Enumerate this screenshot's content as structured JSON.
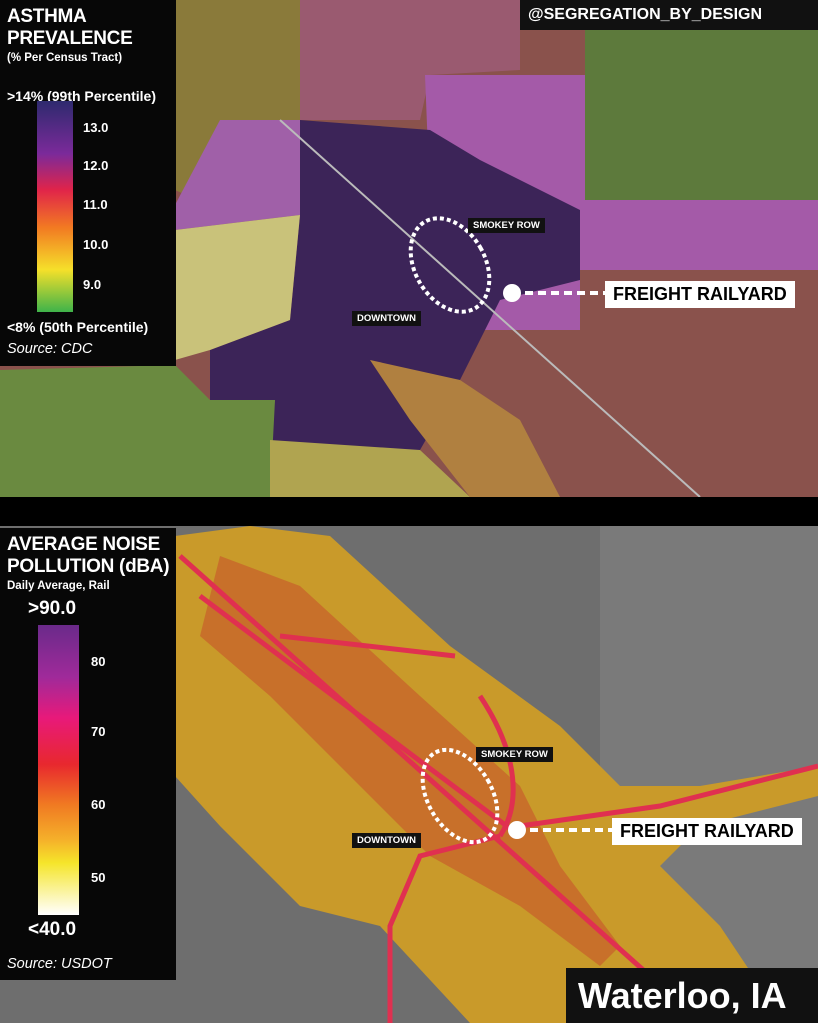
{
  "handle": "@SEGREGATION_BY_DESIGN",
  "city": "Waterloo, IA",
  "asthma_map": {
    "legend": {
      "title_line1": "ASTHMA",
      "title_line2": "PREVALENCE",
      "subtitle": "(% Per Census Tract)",
      "max_label": ">14% (99th Percentile)",
      "min_label": "<8% (50th Percentile)",
      "ticks": [
        "13.0",
        "12.0",
        "11.0",
        "10.0",
        "9.0"
      ],
      "source": "Source: CDC",
      "colors": [
        "#2e2a6e",
        "#7b2a9a",
        "#e0244a",
        "#f27a22",
        "#f5e02a",
        "#3fb34a"
      ]
    },
    "labels": {
      "neighborhood": "SMOKEY ROW",
      "downtown": "DOWNTOWN",
      "railyard": "FREIGHT RAILYARD"
    }
  },
  "noise_map": {
    "legend": {
      "title_line1": "AVERAGE NOISE",
      "title_line2": "POLLUTION (dBA)",
      "subtitle": "Daily Average, Rail",
      "max_label": ">90.0",
      "min_label": "<40.0",
      "ticks": [
        "80",
        "70",
        "60",
        "50"
      ],
      "source": "Source: USDOT",
      "colors": [
        "#6a2a8a",
        "#e8197a",
        "#e8282e",
        "#f07a22",
        "#f5e52a",
        "#ffffff"
      ]
    },
    "labels": {
      "neighborhood": "SMOKEY ROW",
      "downtown": "DOWNTOWN",
      "railyard": "FREIGHT RAILYARD"
    }
  }
}
